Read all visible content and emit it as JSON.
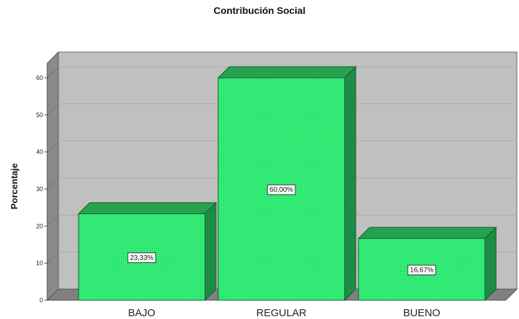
{
  "chart_data": {
    "type": "bar",
    "title": "Contribución Social",
    "ylabel": "Porcentaje",
    "xlabel": "",
    "categories": [
      "BAJO",
      "REGULAR",
      "BUENO"
    ],
    "values": [
      23.33,
      60.0,
      16.67
    ],
    "data_labels": [
      "23,33%",
      "60,00%",
      "16,67%"
    ],
    "yticks": [
      "0",
      "10",
      "20",
      "30",
      "40",
      "50",
      "60"
    ],
    "ylim": [
      0,
      60
    ],
    "grid": true,
    "style": "3d",
    "colors": {
      "bar_front": "#33ee77",
      "bar_side": "#1f8c46",
      "bar_top": "#26a24f",
      "wall": "#c0c0c0",
      "floor": "#808080"
    }
  }
}
